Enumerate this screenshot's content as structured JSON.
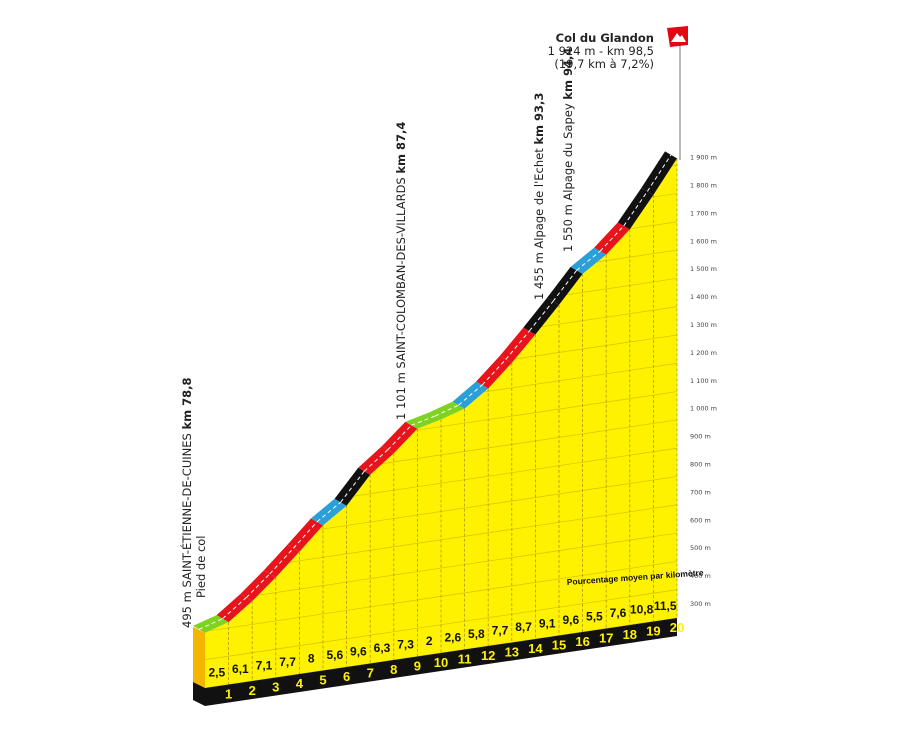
{
  "chart_data": {
    "type": "area",
    "x_label_unit": "km",
    "categories": [
      "1",
      "2",
      "3",
      "4",
      "5",
      "6",
      "7",
      "8",
      "9",
      "10",
      "11",
      "12",
      "13",
      "14",
      "15",
      "16",
      "17",
      "18",
      "19",
      "20"
    ],
    "gradients": [
      "2,5",
      "6,1",
      "7,1",
      "7,7",
      "8",
      "5,6",
      "9,6",
      "6,3",
      "7,3",
      "2",
      "2,6",
      "5,8",
      "7,7",
      "8,7",
      "9,1",
      "9,6",
      "5,5",
      "7,6",
      "10,8",
      "11,5"
    ],
    "gradient_values": [
      2.5,
      6.1,
      7.1,
      7.7,
      8,
      5.6,
      9.6,
      6.3,
      7.3,
      2,
      2.6,
      5.8,
      7.7,
      8.7,
      9.1,
      9.6,
      5.5,
      7.6,
      10.8,
      11.5
    ],
    "y_ticks": [
      "300 m",
      "400 m",
      "500 m",
      "600 m",
      "700 m",
      "800 m",
      "900 m",
      "1 000 m",
      "1 100 m",
      "1 200 m",
      "1 300 m",
      "1 400 m",
      "1 500 m",
      "1 600 m",
      "1 700 m",
      "1 800 m",
      "1 900 m"
    ],
    "y_tick_values": [
      300,
      400,
      500,
      600,
      700,
      800,
      900,
      1000,
      1100,
      1200,
      1300,
      1400,
      1500,
      1600,
      1700,
      1800,
      1900
    ],
    "ylim": [
      300,
      1900
    ],
    "start_elevation": 495,
    "end_elevation": 1924,
    "legend_text": "Pourcentage moyen par kilomètre",
    "gradient_colors": {
      "easy": "#7ed321",
      "moderate": "#2a9fd8",
      "hard": "#e8141c",
      "very_hard": "#111111"
    },
    "fill_color": "#fff200"
  },
  "summit": {
    "name": "Col du Glandon",
    "line1": "1 924 m - km 98,5",
    "line2": "(19,7 km à 7,2%)",
    "flag_icon": "mountain-flag-icon"
  },
  "waypoints": [
    {
      "text": "495 m SAINT-ÉTIENNE-DE-CUINES ",
      "km": "km 78,8",
      "sub": "Pied de col"
    },
    {
      "text": "1 101 m SAINT-COLOMBAN-DES-VILLARDS ",
      "km": "km 87,4"
    },
    {
      "text": "1 455 m Alpage de l'Echet ",
      "km": "km 93,3"
    },
    {
      "text": "1 550 m Alpage du Sapey ",
      "km": "km 94,4"
    }
  ]
}
